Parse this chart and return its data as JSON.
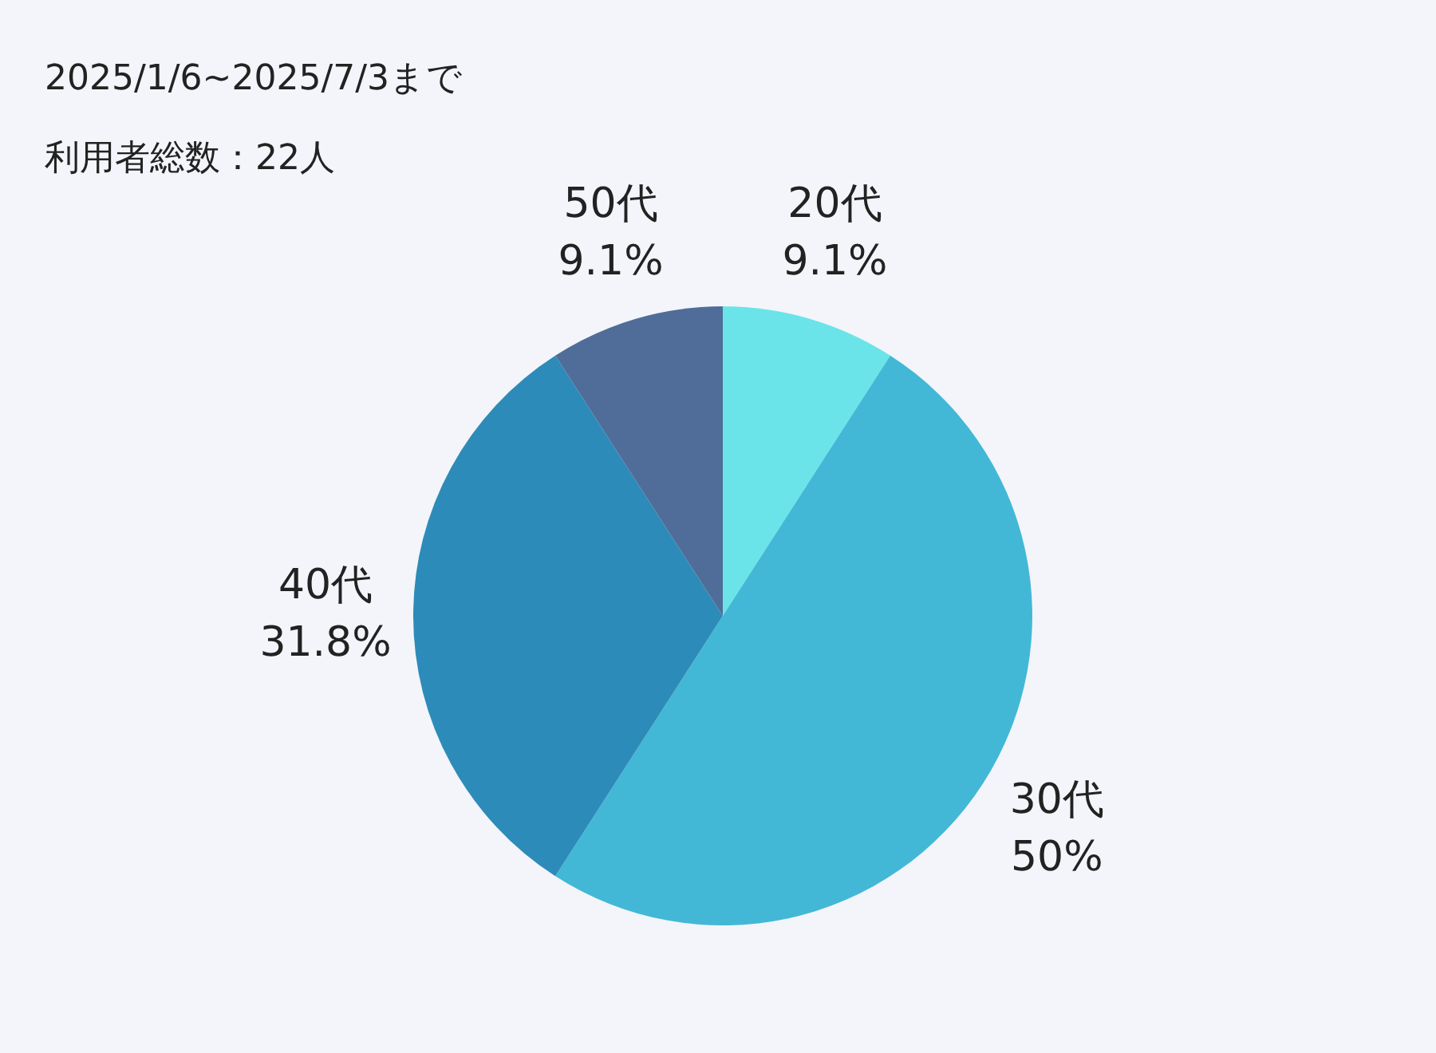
{
  "chart_data": {
    "type": "pie",
    "title": "2025/1/6~2025/7/3まで",
    "subtitle": "利用者総数：22人",
    "categories": [
      "20代",
      "30代",
      "40代",
      "50代"
    ],
    "values": [
      9.1,
      50,
      31.8,
      9.1
    ],
    "colors": [
      "#6ae4e8",
      "#42b8d6",
      "#2d8bb9",
      "#4f6d98"
    ],
    "value_labels": [
      "9.1%",
      "50%",
      "31.8%",
      "9.1%"
    ],
    "legend": false
  }
}
